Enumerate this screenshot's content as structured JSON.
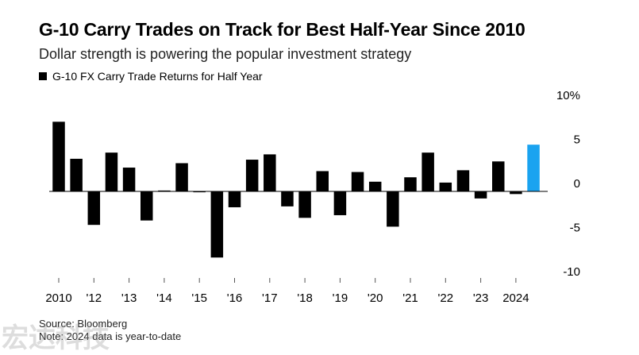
{
  "title": "G-10 Carry Trades on Track for Best Half-Year Since 2010",
  "subtitle": "Dollar strength is powering the popular investment strategy",
  "legend": {
    "label": "G-10 FX Carry Trade Returns for Half Year",
    "color": "#000000"
  },
  "footer": {
    "source": "Source: Bloomberg",
    "note": "Note: 2024 data is year-to-date"
  },
  "watermark": "宏达科技",
  "chart_data": {
    "type": "bar",
    "ylim": [
      -10,
      10
    ],
    "yticks": [
      {
        "value": 10,
        "label": "10%"
      },
      {
        "value": 5,
        "label": "5"
      },
      {
        "value": 0,
        "label": "0"
      },
      {
        "value": -5,
        "label": "-5"
      },
      {
        "value": -10,
        "label": "-10"
      }
    ],
    "xtick_labels": [
      "2010",
      "'12",
      "'13",
      "'14",
      "'15",
      "'16",
      "'17",
      "'18",
      "'19",
      "'20",
      "'21",
      "'22",
      "'23",
      "2024"
    ],
    "colors": {
      "default": "#000000",
      "highlight": "#1aa3f0"
    },
    "series": [
      {
        "values": [
          7.9,
          3.7,
          -3.8,
          4.4,
          2.7,
          -3.3,
          0.1,
          3.2,
          -0.1,
          -7.5,
          -1.8,
          3.6,
          4.2,
          -1.7,
          -3.0,
          2.3,
          -2.7,
          2.2,
          1.1,
          -4.0,
          1.6,
          4.4,
          1.0,
          2.4,
          -0.8,
          3.4,
          -0.3,
          5.3
        ],
        "highlight_index": 27
      }
    ]
  }
}
